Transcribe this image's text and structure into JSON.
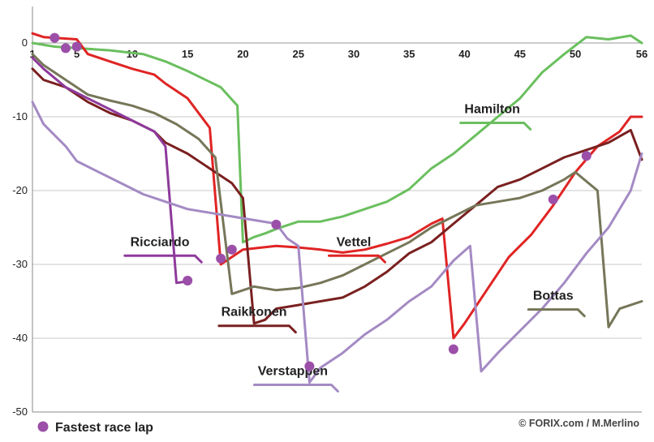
{
  "chart_data": {
    "type": "line",
    "title": "",
    "xlabel": "",
    "ylabel": "",
    "xlim": [
      1,
      56
    ],
    "ylim": [
      -50,
      4
    ],
    "x_ticks": [
      1,
      5,
      10,
      15,
      20,
      25,
      30,
      35,
      40,
      45,
      50,
      56
    ],
    "y_ticks": [
      0,
      -10,
      -20,
      -30,
      -40,
      -50
    ],
    "grid": "horizontal",
    "series": [
      {
        "name": "Hamilton",
        "color": "#6abf5e",
        "points": [
          [
            1,
            0
          ],
          [
            3,
            -0.5
          ],
          [
            6,
            -0.8
          ],
          [
            8,
            -1.0
          ],
          [
            11,
            -1.5
          ],
          [
            13,
            -2.5
          ],
          [
            15,
            -3.8
          ],
          [
            18,
            -6.0
          ],
          [
            19.5,
            -8.5
          ],
          [
            20,
            -27
          ],
          [
            21,
            -26.3
          ],
          [
            22,
            -25.8
          ],
          [
            23,
            -25.2
          ],
          [
            25,
            -24.2
          ],
          [
            27,
            -24.2
          ],
          [
            29,
            -23.5
          ],
          [
            31,
            -22.5
          ],
          [
            33,
            -21.5
          ],
          [
            35,
            -19.8
          ],
          [
            37,
            -17.0
          ],
          [
            39,
            -15.0
          ],
          [
            41,
            -12.5
          ],
          [
            43,
            -10.0
          ],
          [
            45,
            -7.5
          ],
          [
            47,
            -4.0
          ],
          [
            49,
            -1.5
          ],
          [
            51,
            0.8
          ],
          [
            53,
            0.5
          ],
          [
            55,
            1.0
          ],
          [
            56,
            0
          ]
        ],
        "label_text": "Hamilton",
        "label_anchor": [
          42.5,
          -9.5
        ]
      },
      {
        "name": "Vettel",
        "color": "#e02424",
        "points": [
          [
            1,
            1.3
          ],
          [
            2,
            0.8
          ],
          [
            5,
            0.5
          ],
          [
            6,
            -1.5
          ],
          [
            8,
            -2.5
          ],
          [
            10,
            -3.5
          ],
          [
            12,
            -4.3
          ],
          [
            13,
            -5.5
          ],
          [
            15,
            -7.5
          ],
          [
            17,
            -11.5
          ],
          [
            18,
            -30
          ],
          [
            19,
            -29.0
          ],
          [
            20,
            -28
          ],
          [
            23,
            -27.5
          ],
          [
            25,
            -27.7
          ],
          [
            27,
            -28.0
          ],
          [
            29,
            -28.4
          ],
          [
            31,
            -28.0
          ],
          [
            33,
            -27.2
          ],
          [
            35,
            -26.3
          ],
          [
            37,
            -24.5
          ],
          [
            38,
            -23.8
          ],
          [
            39,
            -40.0
          ],
          [
            40,
            -38.0
          ],
          [
            42,
            -33.5
          ],
          [
            44,
            -29.0
          ],
          [
            46,
            -26.0
          ],
          [
            48,
            -22.0
          ],
          [
            50,
            -17.5
          ],
          [
            52,
            -14.0
          ],
          [
            54,
            -12.0
          ],
          [
            55,
            -10.0
          ],
          [
            56,
            -10.0
          ]
        ],
        "label_text": "Vettel",
        "label_anchor": [
          30,
          -27.5
        ]
      },
      {
        "name": "Raikkonen",
        "color": "#7a2020",
        "points": [
          [
            1,
            -3.5
          ],
          [
            2,
            -5.0
          ],
          [
            4,
            -6.0
          ],
          [
            6,
            -8.0
          ],
          [
            8,
            -9.5
          ],
          [
            10,
            -10.5
          ],
          [
            12,
            -12.0
          ],
          [
            13,
            -13.5
          ],
          [
            15,
            -15.0
          ],
          [
            17,
            -17.0
          ],
          [
            19,
            -19.0
          ],
          [
            20,
            -21.0
          ],
          [
            21,
            -38.0
          ],
          [
            22,
            -37.5
          ],
          [
            23,
            -36.0
          ],
          [
            25,
            -35.5
          ],
          [
            27,
            -35.0
          ],
          [
            29,
            -34.5
          ],
          [
            31,
            -33.0
          ],
          [
            33,
            -31.0
          ],
          [
            35,
            -28.5
          ],
          [
            37,
            -27.0
          ],
          [
            39,
            -24.5
          ],
          [
            41,
            -22.0
          ],
          [
            43,
            -19.5
          ],
          [
            45,
            -18.5
          ],
          [
            47,
            -17.0
          ],
          [
            49,
            -15.5
          ],
          [
            51,
            -14.5
          ],
          [
            53,
            -13.5
          ],
          [
            55,
            -11.8
          ],
          [
            56,
            -15.8
          ]
        ],
        "label_text": "Raikkonen",
        "label_anchor": [
          21,
          -37
        ]
      },
      {
        "name": "Bottas",
        "color": "#767659",
        "points": [
          [
            1,
            -1.5
          ],
          [
            2,
            -3.0
          ],
          [
            4,
            -5.0
          ],
          [
            6,
            -7.0
          ],
          [
            8,
            -7.8
          ],
          [
            10,
            -8.5
          ],
          [
            12,
            -9.5
          ],
          [
            14,
            -11.0
          ],
          [
            16,
            -13.0
          ],
          [
            17.5,
            -15.5
          ],
          [
            19,
            -34.0
          ],
          [
            21,
            -33.0
          ],
          [
            23,
            -33.5
          ],
          [
            25,
            -33.2
          ],
          [
            27,
            -32.5
          ],
          [
            29,
            -31.5
          ],
          [
            31,
            -30.0
          ],
          [
            33,
            -28.5
          ],
          [
            35,
            -27.0
          ],
          [
            37,
            -25.0
          ],
          [
            39,
            -23.5
          ],
          [
            41,
            -22.0
          ],
          [
            43,
            -21.5
          ],
          [
            45,
            -21.0
          ],
          [
            47,
            -20.0
          ],
          [
            49,
            -18.5
          ],
          [
            50,
            -17.5
          ],
          [
            52,
            -20.0
          ],
          [
            53,
            -38.5
          ],
          [
            54,
            -36.0
          ],
          [
            55,
            -35.5
          ],
          [
            56,
            -35.0
          ]
        ],
        "label_text": "Bottas",
        "label_anchor": [
          48,
          -34.8
        ]
      },
      {
        "name": "Ricciardo",
        "color": "#8e3a9c",
        "points": [
          [
            1,
            -2.0
          ],
          [
            2,
            -3.5
          ],
          [
            4,
            -6.0
          ],
          [
            6,
            -7.5
          ],
          [
            8,
            -9.0
          ],
          [
            10,
            -10.5
          ],
          [
            12,
            -12.0
          ],
          [
            13,
            -14.0
          ],
          [
            14,
            -32.5
          ],
          [
            15,
            -32.3
          ]
        ],
        "label_text": "Ricciardo",
        "label_anchor": [
          12.5,
          -27.5
        ]
      },
      {
        "name": "Verstappen",
        "color": "#a48ac4",
        "points": [
          [
            1,
            -8.0
          ],
          [
            2,
            -11.0
          ],
          [
            4,
            -14.0
          ],
          [
            5,
            -16.0
          ],
          [
            7,
            -17.5
          ],
          [
            9,
            -19.0
          ],
          [
            11,
            -20.5
          ],
          [
            13,
            -21.5
          ],
          [
            15,
            -22.5
          ],
          [
            17,
            -23.0
          ],
          [
            19,
            -23.5
          ],
          [
            21,
            -24.0
          ],
          [
            23,
            -24.5
          ],
          [
            24,
            -26.5
          ],
          [
            25,
            -27.5
          ],
          [
            26,
            -46.0
          ],
          [
            27,
            -44.0
          ],
          [
            29,
            -42.0
          ],
          [
            31,
            -39.5
          ],
          [
            33,
            -37.5
          ],
          [
            35,
            -35.0
          ],
          [
            37,
            -33.0
          ],
          [
            39,
            -29.5
          ],
          [
            40.5,
            -27.5
          ],
          [
            41.5,
            -44.5
          ],
          [
            43,
            -42.0
          ],
          [
            45,
            -39.0
          ],
          [
            47,
            -36.0
          ],
          [
            49,
            -32.5
          ],
          [
            51,
            -28.5
          ],
          [
            53,
            -25.0
          ],
          [
            55,
            -20.0
          ],
          [
            56,
            -15.0
          ]
        ],
        "label_text": "Verstappen",
        "label_anchor": [
          24.5,
          -45
        ]
      }
    ],
    "fastest_laps": [
      {
        "driver": "Hamilton",
        "x": 3,
        "y": 0.7
      },
      {
        "driver": "Hamilton",
        "x": 4,
        "y": -0.7
      },
      {
        "driver": "Hamilton",
        "x": 5,
        "y": -0.5
      },
      {
        "driver": "Vettel",
        "x": 18,
        "y": -29.2
      },
      {
        "driver": "Raikkonen",
        "x": 19,
        "y": -28.0
      },
      {
        "driver": "Verstappen",
        "x": 23,
        "y": -24.6
      },
      {
        "driver": "Ricciardo",
        "x": 15,
        "y": -32.2
      },
      {
        "driver": "Verstappen",
        "x": 26,
        "y": -43.8
      },
      {
        "driver": "Vettel",
        "x": 39,
        "y": -41.5
      },
      {
        "driver": "Bottas",
        "x": 48,
        "y": -21.2
      },
      {
        "driver": "Vettel",
        "x": 51,
        "y": -15.3
      }
    ],
    "marker_color": "#9b4fa8"
  },
  "legend": {
    "marker_label": "Fastest race lap"
  },
  "credit": {
    "text": "© FORIX.com / M.Merlino"
  }
}
